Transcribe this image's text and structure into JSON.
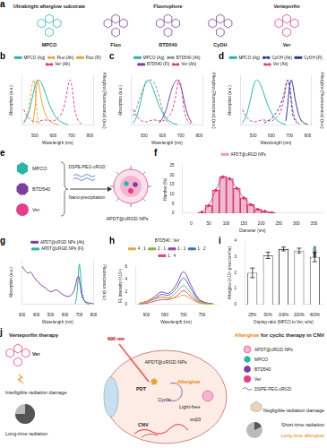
{
  "a": {
    "label": "a",
    "groups": [
      {
        "title": "Ultrabright afterglow substrate",
        "compounds": [
          "MPCO"
        ]
      },
      {
        "title": "Fluorophore",
        "compounds": [
          "Fluo",
          "BTD540",
          "CyOH"
        ]
      },
      {
        "title": "Verteporfin",
        "compounds": [
          "Ver"
        ]
      }
    ]
  },
  "chart_data": [
    {
      "label": "b",
      "type": "line",
      "x_label": "Wavelength (nm)",
      "y_label": "Absorption (a.u.)",
      "y2_label": "Afterglow (Fluorescence) (a.u.)",
      "xlim": [
        430,
        820
      ],
      "xticks": [
        500,
        600,
        700,
        800
      ],
      "ylim": [
        0,
        1.1
      ],
      "y2lim": [
        0,
        1.1
      ],
      "tick_labels": "x",
      "grid": false,
      "legend": "top",
      "series": [
        {
          "name": "MPCO (Ag)",
          "color": "#2bb5a8",
          "line_style": "solid",
          "axis": "y2",
          "x": [
            440,
            460,
            480,
            500,
            510,
            520,
            530,
            540,
            560,
            580,
            600,
            620,
            650,
            680
          ],
          "values": [
            0.05,
            0.2,
            0.5,
            0.85,
            0.97,
            1.0,
            0.97,
            0.9,
            0.68,
            0.45,
            0.28,
            0.15,
            0.06,
            0.02
          ]
        },
        {
          "name": "Fluo (Ab)",
          "color": "#e8a33d",
          "line_style": "dashed",
          "x": [
            440,
            460,
            470,
            480,
            490,
            495,
            500,
            510,
            520,
            530
          ],
          "values": [
            0.08,
            0.25,
            0.45,
            0.75,
            0.98,
            1.0,
            0.85,
            0.35,
            0.08,
            0.02
          ]
        },
        {
          "name": "Fluo (Fl)",
          "color": "#e8a33d",
          "line_style": "solid",
          "axis": "y2",
          "x": [
            490,
            500,
            510,
            515,
            520,
            530,
            540,
            560,
            580,
            600,
            630
          ],
          "values": [
            0.05,
            0.35,
            0.85,
            1.0,
            0.95,
            0.7,
            0.48,
            0.22,
            0.1,
            0.05,
            0.02
          ]
        },
        {
          "name": "Ver (Ab)",
          "color": "#e0408a",
          "line_style": "dashed",
          "x": [
            440,
            460,
            500,
            550,
            600,
            630,
            650,
            670,
            680,
            690,
            700,
            710,
            720,
            740,
            760
          ],
          "values": [
            0.35,
            0.2,
            0.08,
            0.12,
            0.1,
            0.18,
            0.3,
            0.6,
            0.85,
            1.0,
            0.9,
            0.6,
            0.3,
            0.08,
            0.02
          ]
        }
      ]
    },
    {
      "label": "c",
      "type": "line",
      "x_label": "Wavelength (nm)",
      "y_label": "Absorption (a.u.)",
      "y2_label": "Afterglow (Fluorescence) (a.u.)",
      "xlim": [
        430,
        820
      ],
      "xticks": [
        500,
        600,
        700,
        800
      ],
      "ylim": [
        0,
        1.1
      ],
      "y2lim": [
        0,
        1.1
      ],
      "tick_labels": "x",
      "grid": false,
      "legend": "top",
      "series": [
        {
          "name": "MPCO (Ag)",
          "color": "#2bb5a8",
          "line_style": "solid",
          "axis": "y2",
          "x": [
            440,
            460,
            480,
            500,
            510,
            520,
            530,
            540,
            560,
            580,
            600,
            620,
            650,
            680
          ],
          "values": [
            0.05,
            0.2,
            0.5,
            0.85,
            0.97,
            1.0,
            0.97,
            0.9,
            0.68,
            0.45,
            0.28,
            0.15,
            0.06,
            0.02
          ]
        },
        {
          "name": "BTD540 (Ab)",
          "color": "#8c8c8c",
          "line_style": "dashed",
          "x": [
            440,
            460,
            480,
            500,
            520,
            540,
            560,
            580,
            600,
            620,
            640
          ],
          "values": [
            0.2,
            0.4,
            0.65,
            0.85,
            0.97,
            1.0,
            0.9,
            0.65,
            0.35,
            0.12,
            0.03
          ]
        },
        {
          "name": "BTD540 (Fl)",
          "color": "#7b3fa0",
          "line_style": "solid",
          "axis": "y2",
          "x": [
            580,
            600,
            620,
            640,
            660,
            680,
            700,
            720,
            740,
            760
          ],
          "values": [
            0.05,
            0.15,
            0.35,
            0.65,
            0.9,
            1.0,
            0.85,
            0.5,
            0.2,
            0.05
          ]
        },
        {
          "name": "Ver (Ab)",
          "color": "#e0408a",
          "line_style": "dashed",
          "x": [
            440,
            460,
            500,
            550,
            600,
            630,
            650,
            670,
            680,
            690,
            700,
            710,
            720,
            740,
            760
          ],
          "values": [
            0.35,
            0.2,
            0.08,
            0.12,
            0.1,
            0.18,
            0.3,
            0.6,
            0.85,
            1.0,
            0.9,
            0.6,
            0.3,
            0.08,
            0.02
          ]
        }
      ]
    },
    {
      "label": "d",
      "type": "line",
      "x_label": "Wavelength (nm)",
      "y_label": "Absorption (a.u.)",
      "y2_label": "Afterglow (Fluorescence) (a.u.)",
      "xlim": [
        430,
        820
      ],
      "xticks": [
        500,
        600,
        700,
        800
      ],
      "ylim": [
        0,
        1.1
      ],
      "y2lim": [
        0,
        1.1
      ],
      "tick_labels": "x",
      "grid": false,
      "legend": "top",
      "series": [
        {
          "name": "MPCO (Ag)",
          "color": "#2bb5a8",
          "line_style": "solid",
          "axis": "y2",
          "x": [
            440,
            460,
            480,
            500,
            510,
            520,
            530,
            540,
            560,
            580,
            600,
            620,
            650,
            680
          ],
          "values": [
            0.05,
            0.2,
            0.5,
            0.85,
            0.97,
            1.0,
            0.97,
            0.9,
            0.68,
            0.45,
            0.28,
            0.15,
            0.06,
            0.02
          ]
        },
        {
          "name": "CyOH (Ab)",
          "color": "#2c3e8c",
          "line_style": "dashed",
          "x": [
            560,
            600,
            630,
            650,
            670,
            680,
            690,
            700,
            710,
            720,
            740
          ],
          "values": [
            0.05,
            0.15,
            0.3,
            0.45,
            0.7,
            0.9,
            1.0,
            0.85,
            0.5,
            0.2,
            0.05
          ]
        },
        {
          "name": "CyOH (Fl)",
          "color": "#2c3e8c",
          "line_style": "solid",
          "axis": "y2",
          "x": [
            680,
            690,
            700,
            710,
            720,
            730,
            750,
            770,
            800
          ],
          "values": [
            0.1,
            0.45,
            0.85,
            1.0,
            0.85,
            0.6,
            0.25,
            0.08,
            0.02
          ]
        },
        {
          "name": "Ver (Ab)",
          "color": "#e0408a",
          "line_style": "dashed",
          "x": [
            440,
            460,
            500,
            550,
            600,
            630,
            650,
            670,
            680,
            690,
            700,
            710,
            720,
            740,
            760
          ],
          "values": [
            0.35,
            0.2,
            0.08,
            0.12,
            0.1,
            0.18,
            0.3,
            0.6,
            0.85,
            1.0,
            0.9,
            0.6,
            0.3,
            0.08,
            0.02
          ]
        }
      ]
    },
    {
      "label": "f",
      "type": "bar",
      "x_label": "Diameter (nm)",
      "y_label": "Number (%)",
      "xlim": [
        0,
        350
      ],
      "xticks": [
        0,
        50,
        100,
        150,
        200,
        250,
        300,
        350
      ],
      "ylim": [
        0,
        25
      ],
      "yticks": [
        0,
        5,
        10,
        15,
        20,
        25
      ],
      "grid": false,
      "legend": "top",
      "series": [
        {
          "name": "APDT@cRGD NPs",
          "color": "#d6336c",
          "marker": "circle",
          "x": [
            30,
            50,
            70,
            90,
            110,
            130,
            150,
            170,
            190,
            210,
            230
          ],
          "values": [
            0.5,
            4,
            12,
            19,
            18,
            13,
            8,
            4.5,
            2,
            1,
            0.3
          ]
        }
      ]
    },
    {
      "label": "g",
      "type": "line",
      "x_label": "Wavelength (nm)",
      "y_label": "Absorption (a.u.)",
      "y2_label": "Fluorescence (a.u.)",
      "xlim": [
        300,
        800
      ],
      "xticks": [
        300,
        400,
        500,
        600,
        700,
        800
      ],
      "ylim": [
        0,
        1.1
      ],
      "y2lim": [
        0,
        1.1
      ],
      "tick_labels": "x",
      "grid": false,
      "legend": "top",
      "series": [
        {
          "name": "APDT@cRGD NPs (Ab)",
          "color": "#7b3fa0",
          "line_style": "solid",
          "x": [
            300,
            320,
            340,
            360,
            380,
            400,
            430,
            460,
            500,
            540,
            580,
            620,
            650,
            670,
            685,
            695,
            705,
            720,
            740,
            770,
            800
          ],
          "values": [
            0.95,
            0.85,
            0.78,
            0.8,
            0.7,
            0.6,
            0.5,
            0.42,
            0.32,
            0.36,
            0.26,
            0.2,
            0.26,
            0.42,
            0.65,
            0.7,
            0.5,
            0.2,
            0.08,
            0.04,
            0.02
          ]
        },
        {
          "name": "APDT@cRGD NPs (Fl)",
          "color": "#2bb5a8",
          "line_style": "solid",
          "axis": "y2",
          "x": [
            670,
            680,
            690,
            695,
            700,
            705,
            712,
            720,
            735,
            750,
            770
          ],
          "values": [
            0.02,
            0.15,
            0.55,
            0.85,
            1.0,
            0.9,
            0.6,
            0.3,
            0.1,
            0.03,
            0.01
          ]
        }
      ]
    },
    {
      "label": "h",
      "type": "line",
      "x_label": "Wavelength (nm)",
      "y_label": "FL intensity (×10⁴)",
      "xlim": [
        570,
        790
      ],
      "xticks": [
        600,
        650,
        700,
        750
      ],
      "ylim": [
        0,
        6
      ],
      "yticks": [
        0,
        2,
        4,
        6
      ],
      "grid": false,
      "legend": "top",
      "legend_title": "BTD540 : Ver",
      "x": [
        580,
        600,
        620,
        640,
        660,
        680,
        700,
        720,
        740,
        760,
        780
      ],
      "series": [
        {
          "name": "4 : 1",
          "color": "#e8a33d",
          "line_style": "solid",
          "values": [
            0.2,
            0.5,
            0.9,
            1.2,
            1.0,
            1.1,
            1.5,
            0.9,
            0.3,
            0.1,
            0.05
          ]
        },
        {
          "name": "2 : 1",
          "color": "#7fb33a",
          "line_style": "solid",
          "values": [
            0.15,
            0.4,
            0.8,
            1.2,
            1.1,
            1.9,
            3.0,
            1.8,
            0.6,
            0.2,
            0.05
          ]
        },
        {
          "name": "1 : 1",
          "color": "#8e44ad",
          "line_style": "solid",
          "values": [
            0.2,
            0.5,
            1.2,
            2.0,
            1.8,
            3.1,
            5.2,
            3.1,
            1.0,
            0.3,
            0.1
          ]
        },
        {
          "name": "1 : 2",
          "color": "#3a6fc4",
          "line_style": "solid",
          "values": [
            0.15,
            0.4,
            0.9,
            1.6,
            1.5,
            2.5,
            4.2,
            2.5,
            0.8,
            0.3,
            0.1
          ]
        },
        {
          "name": "1 : 4",
          "color": "#e0408a",
          "line_style": "solid",
          "values": [
            0.1,
            0.2,
            0.5,
            0.8,
            0.8,
            1.3,
            2.2,
            1.3,
            0.4,
            0.15,
            0.05
          ]
        }
      ]
    },
    {
      "label": "i",
      "type": "bar",
      "x_label": "Doping ratio (MPCO to Ver, w/w)",
      "y_label": "Afterglow (×10⁸ p/sec/cm²/sr)",
      "categories": [
        "25%",
        "50%",
        "100%",
        "200%",
        "400%"
      ],
      "values": [
        2.0,
        3.1,
        3.5,
        3.4,
        3.0
      ],
      "errors": [
        0.3,
        0.2,
        0.12,
        0.15,
        0.3
      ],
      "points": [
        [
          1.8,
          2.0,
          2.2
        ],
        [
          3.0,
          3.1,
          3.2
        ],
        [
          3.4,
          3.5,
          3.6
        ],
        [
          3.3,
          3.4,
          3.5
        ],
        [
          2.8,
          3.0,
          3.2
        ]
      ],
      "color": "#000000",
      "colors": [
        "#e8a33d",
        "#3a6fc4",
        "#2bb5a8",
        "#8c8c8c",
        "#555555"
      ],
      "ylim": [
        0,
        4
      ],
      "yticks": [
        0,
        1,
        2,
        3,
        4
      ],
      "grid": false
    }
  ],
  "e": {
    "label": "e",
    "components": [
      "MPCO",
      "BTD540",
      "Ver"
    ],
    "reagent": "DSPE-PEG-cRGD",
    "process": "Nano-precipitation",
    "product": "APDT@cRGD NPs"
  },
  "j": {
    "label": "j",
    "left_title": "Verteporfin therapy",
    "left_drug": "Ver",
    "left_damage": "Intelligible radiation damage",
    "left_time": "Long-time radiation",
    "light": "690 nm",
    "np": "APDT@cRGD NPs",
    "pdt": "PDT",
    "cyclic": "Cyclic",
    "afterglow": "Afterglow",
    "light_free": "Light-free",
    "receptor": "αvβ3",
    "lesion": "CNV",
    "right_title": "Afterglow for cyclic therapy in CNV",
    "right_damage": "Negligible radiation damage",
    "right_time": "Short-time radiation",
    "right_time2": "Long-time afterglow",
    "key": [
      "APDT@cRGD NPs",
      "MPCO",
      "BTD540",
      "Ver",
      "DSPE-PEG-cRGD"
    ]
  }
}
